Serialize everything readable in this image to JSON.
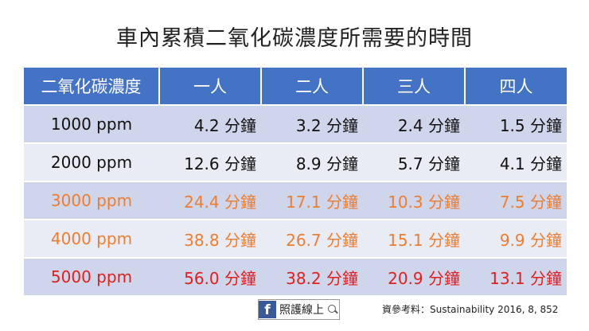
{
  "title": "車內累積二氧化碳濃度所需要的時間",
  "chart_data": {
    "type": "table",
    "columns": [
      "二氧化碳濃度",
      "一人",
      "二人",
      "三人",
      "四人"
    ],
    "unit": "分鐘",
    "rows": [
      {
        "label": "1000 ppm",
        "values": [
          "4.2 分鐘",
          "3.2 分鐘",
          "2.4 分鐘",
          "1.5 分鐘"
        ],
        "color": "#111111"
      },
      {
        "label": "2000 ppm",
        "values": [
          "12.6 分鐘",
          "8.9 分鐘",
          "5.7 分鐘",
          "4.1 分鐘"
        ],
        "color": "#111111"
      },
      {
        "label": "3000 ppm",
        "values": [
          "24.4 分鐘",
          "17.1 分鐘",
          "10.3 分鐘",
          "7.5 分鐘"
        ],
        "color": "#ed7d31"
      },
      {
        "label": "4000 ppm",
        "values": [
          "38.8 分鐘",
          "26.7 分鐘",
          "15.1 分鐘",
          "9.9 分鐘"
        ],
        "color": "#ed7d31"
      },
      {
        "label": "5000 ppm",
        "values": [
          "56.0 分鐘",
          "38.2 分鐘",
          "20.9 分鐘",
          "13.1 分鐘"
        ],
        "color": "#e01f1f"
      }
    ],
    "header_color": "#4472c4",
    "row_colors": [
      "#cfd5ea",
      "#e9ebf5"
    ]
  },
  "footer": {
    "fb_letter": "f",
    "brand": "照護線上",
    "icon": "search-icon",
    "source": "資參考料：Sustainability 2016, 8, 852"
  }
}
